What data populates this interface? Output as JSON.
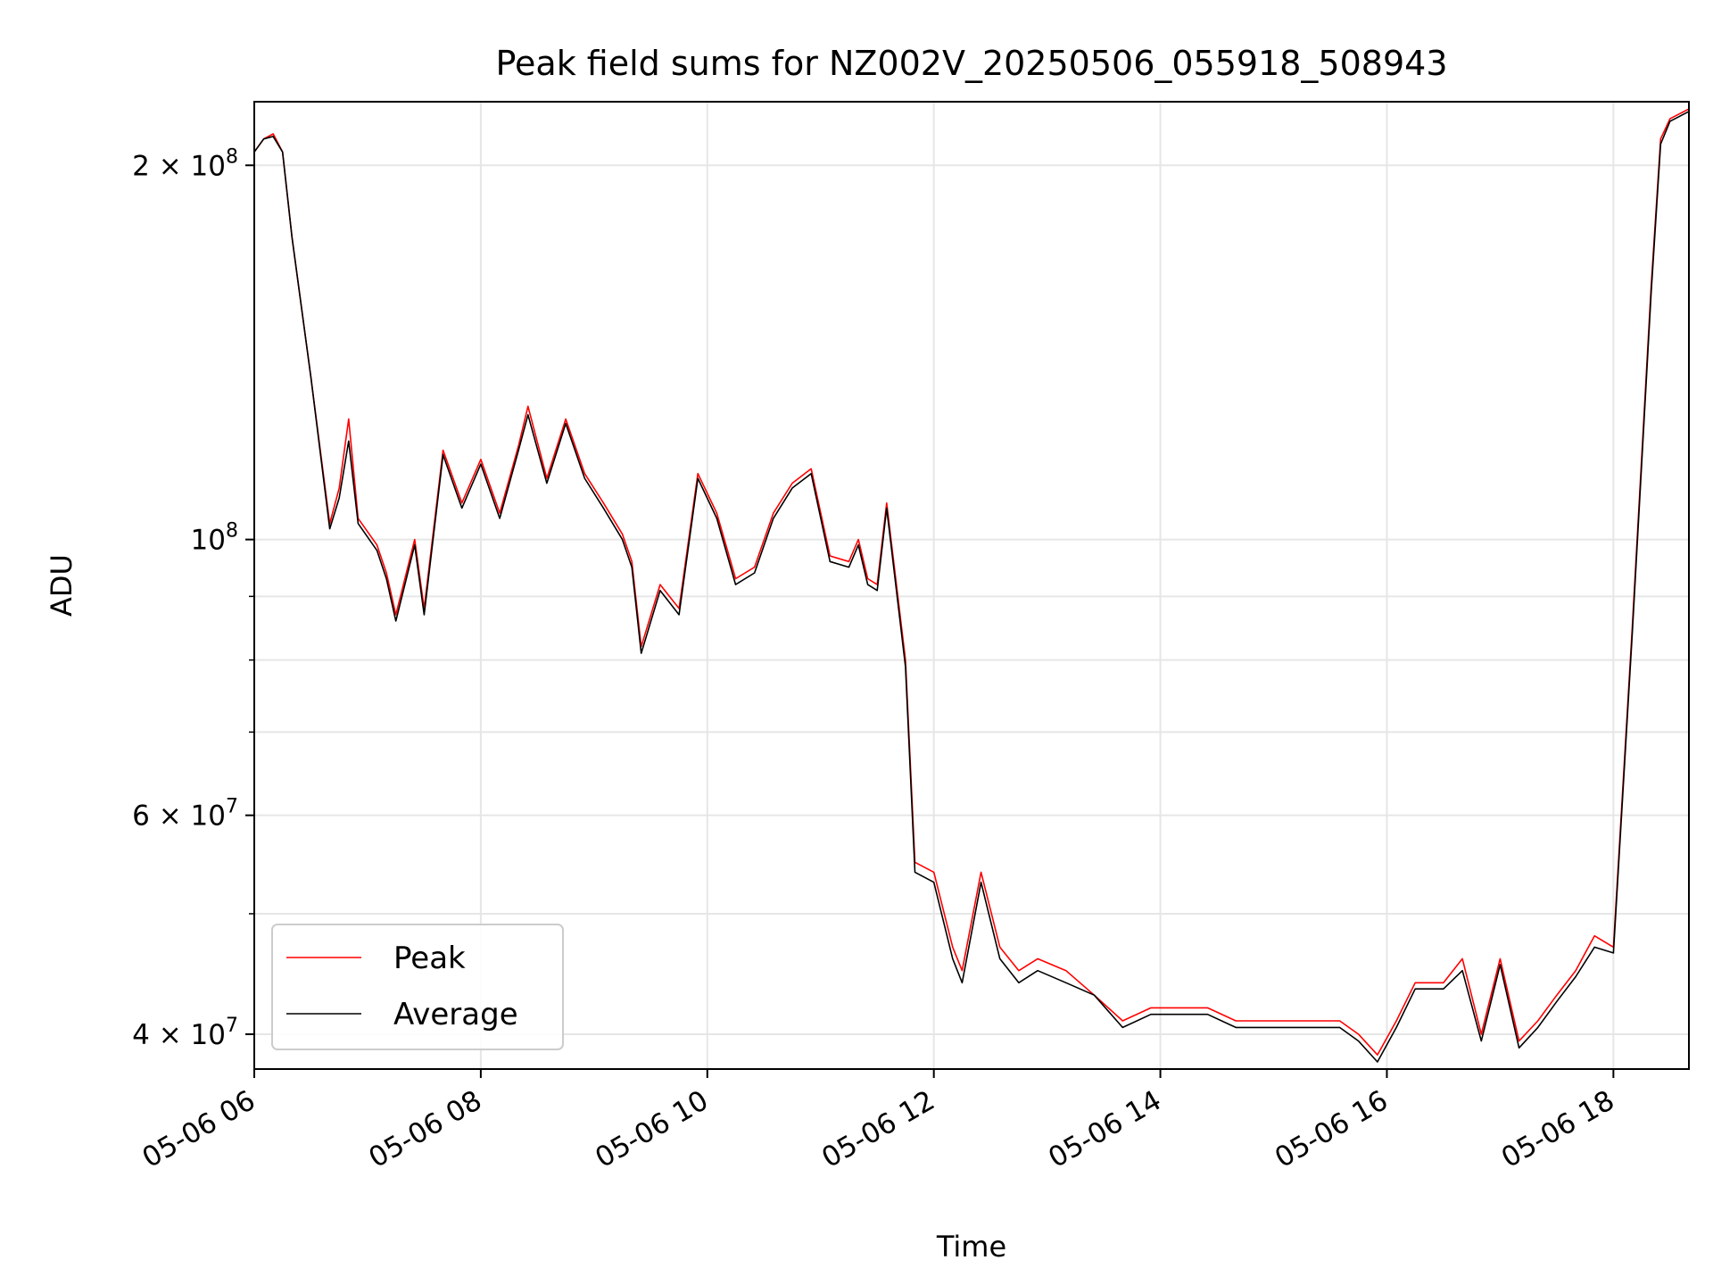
{
  "chart_data": {
    "type": "line",
    "title": "Peak field sums for NZ002V_20250506_055918_508943",
    "xlabel": "Time",
    "ylabel": "ADU",
    "y_scale": "log",
    "ylim": [
      37500000,
      225000000
    ],
    "xlim": [
      "2025-05-06T06:00",
      "2025-05-06T18:40"
    ],
    "grid": true,
    "legend_position": "lower-left",
    "x_tick_labels": [
      {
        "label": "05-06 06",
        "t": "2025-05-06T06:00"
      },
      {
        "label": "05-06 08",
        "t": "2025-05-06T08:00"
      },
      {
        "label": "05-06 10",
        "t": "2025-05-06T10:00"
      },
      {
        "label": "05-06 12",
        "t": "2025-05-06T12:00"
      },
      {
        "label": "05-06 14",
        "t": "2025-05-06T14:00"
      },
      {
        "label": "05-06 16",
        "t": "2025-05-06T16:00"
      },
      {
        "label": "05-06 18",
        "t": "2025-05-06T18:00"
      }
    ],
    "y_tick_labels": [
      {
        "base": "4",
        "exp": "7",
        "value": 40000000
      },
      {
        "base": "6",
        "exp": "7",
        "value": 60000000
      },
      {
        "base": "",
        "exp": "8",
        "value": 100000000
      },
      {
        "base": "2",
        "exp": "8",
        "value": 200000000
      }
    ],
    "y_minor_ticks": [
      50000000,
      70000000,
      80000000,
      90000000
    ],
    "series": [
      {
        "name": "Peak",
        "color": "#ff0000",
        "x": [
          "2025-05-06T06:00",
          "2025-05-06T06:05",
          "2025-05-06T06:10",
          "2025-05-06T06:15",
          "2025-05-06T06:20",
          "2025-05-06T06:30",
          "2025-05-06T06:40",
          "2025-05-06T06:45",
          "2025-05-06T06:50",
          "2025-05-06T06:55",
          "2025-05-06T07:05",
          "2025-05-06T07:10",
          "2025-05-06T07:15",
          "2025-05-06T07:25",
          "2025-05-06T07:30",
          "2025-05-06T07:40",
          "2025-05-06T07:50",
          "2025-05-06T08:00",
          "2025-05-06T08:10",
          "2025-05-06T08:20",
          "2025-05-06T08:25",
          "2025-05-06T08:35",
          "2025-05-06T08:45",
          "2025-05-06T08:55",
          "2025-05-06T09:05",
          "2025-05-06T09:15",
          "2025-05-06T09:20",
          "2025-05-06T09:25",
          "2025-05-06T09:35",
          "2025-05-06T09:45",
          "2025-05-06T09:55",
          "2025-05-06T10:05",
          "2025-05-06T10:15",
          "2025-05-06T10:25",
          "2025-05-06T10:35",
          "2025-05-06T10:45",
          "2025-05-06T10:55",
          "2025-05-06T11:05",
          "2025-05-06T11:15",
          "2025-05-06T11:20",
          "2025-05-06T11:25",
          "2025-05-06T11:30",
          "2025-05-06T11:35",
          "2025-05-06T11:45",
          "2025-05-06T11:50",
          "2025-05-06T12:00",
          "2025-05-06T12:10",
          "2025-05-06T12:15",
          "2025-05-06T12:25",
          "2025-05-06T12:35",
          "2025-05-06T12:45",
          "2025-05-06T12:55",
          "2025-05-06T13:10",
          "2025-05-06T13:25",
          "2025-05-06T13:40",
          "2025-05-06T13:55",
          "2025-05-06T14:10",
          "2025-05-06T14:25",
          "2025-05-06T14:40",
          "2025-05-06T14:55",
          "2025-05-06T15:10",
          "2025-05-06T15:25",
          "2025-05-06T15:35",
          "2025-05-06T15:45",
          "2025-05-06T15:55",
          "2025-05-06T16:05",
          "2025-05-06T16:15",
          "2025-05-06T16:30",
          "2025-05-06T16:40",
          "2025-05-06T16:50",
          "2025-05-06T17:00",
          "2025-05-06T17:10",
          "2025-05-06T17:20",
          "2025-05-06T17:30",
          "2025-05-06T17:40",
          "2025-05-06T17:50",
          "2025-05-06T18:00",
          "2025-05-06T18:10",
          "2025-05-06T18:20",
          "2025-05-06T18:25",
          "2025-05-06T18:30",
          "2025-05-06T18:35",
          "2025-05-06T18:40"
        ],
        "y": [
          205000000,
          210000000,
          212000000,
          205000000,
          175000000,
          135000000,
          103000000,
          110000000,
          125000000,
          104000000,
          99000000,
          94000000,
          87000000,
          100000000,
          88000000,
          118000000,
          107000000,
          116000000,
          105000000,
          119000000,
          128000000,
          112000000,
          125000000,
          113000000,
          107000000,
          101000000,
          96000000,
          82000000,
          92000000,
          88000000,
          113000000,
          105000000,
          93000000,
          95000000,
          105000000,
          111000000,
          114000000,
          97000000,
          96000000,
          100000000,
          93000000,
          92000000,
          107000000,
          80000000,
          55000000,
          54000000,
          47000000,
          45000000,
          54000000,
          47000000,
          45000000,
          46000000,
          45000000,
          43000000,
          41000000,
          42000000,
          42000000,
          42000000,
          41000000,
          41000000,
          41000000,
          41000000,
          41000000,
          40000000,
          38500000,
          41000000,
          44000000,
          44000000,
          46000000,
          40000000,
          46000000,
          39500000,
          41000000,
          43000000,
          45000000,
          48000000,
          47000000,
          85000000,
          160000000,
          210000000,
          218000000,
          220000000,
          222000000
        ]
      },
      {
        "name": "Average",
        "color": "#000000",
        "x": [
          "2025-05-06T06:00",
          "2025-05-06T06:05",
          "2025-05-06T06:10",
          "2025-05-06T06:15",
          "2025-05-06T06:20",
          "2025-05-06T06:30",
          "2025-05-06T06:40",
          "2025-05-06T06:45",
          "2025-05-06T06:50",
          "2025-05-06T06:55",
          "2025-05-06T07:05",
          "2025-05-06T07:10",
          "2025-05-06T07:15",
          "2025-05-06T07:25",
          "2025-05-06T07:30",
          "2025-05-06T07:40",
          "2025-05-06T07:50",
          "2025-05-06T08:00",
          "2025-05-06T08:10",
          "2025-05-06T08:20",
          "2025-05-06T08:25",
          "2025-05-06T08:35",
          "2025-05-06T08:45",
          "2025-05-06T08:55",
          "2025-05-06T09:05",
          "2025-05-06T09:15",
          "2025-05-06T09:20",
          "2025-05-06T09:25",
          "2025-05-06T09:35",
          "2025-05-06T09:45",
          "2025-05-06T09:55",
          "2025-05-06T10:05",
          "2025-05-06T10:15",
          "2025-05-06T10:25",
          "2025-05-06T10:35",
          "2025-05-06T10:45",
          "2025-05-06T10:55",
          "2025-05-06T11:05",
          "2025-05-06T11:15",
          "2025-05-06T11:20",
          "2025-05-06T11:25",
          "2025-05-06T11:30",
          "2025-05-06T11:35",
          "2025-05-06T11:45",
          "2025-05-06T11:50",
          "2025-05-06T12:00",
          "2025-05-06T12:10",
          "2025-05-06T12:15",
          "2025-05-06T12:25",
          "2025-05-06T12:35",
          "2025-05-06T12:45",
          "2025-05-06T12:55",
          "2025-05-06T13:10",
          "2025-05-06T13:25",
          "2025-05-06T13:40",
          "2025-05-06T13:55",
          "2025-05-06T14:10",
          "2025-05-06T14:25",
          "2025-05-06T14:40",
          "2025-05-06T14:55",
          "2025-05-06T15:10",
          "2025-05-06T15:25",
          "2025-05-06T15:35",
          "2025-05-06T15:45",
          "2025-05-06T15:55",
          "2025-05-06T16:05",
          "2025-05-06T16:15",
          "2025-05-06T16:30",
          "2025-05-06T16:40",
          "2025-05-06T16:50",
          "2025-05-06T17:00",
          "2025-05-06T17:10",
          "2025-05-06T17:20",
          "2025-05-06T17:30",
          "2025-05-06T17:40",
          "2025-05-06T17:50",
          "2025-05-06T18:00",
          "2025-05-06T18:10",
          "2025-05-06T18:20",
          "2025-05-06T18:25",
          "2025-05-06T18:30",
          "2025-05-06T18:35",
          "2025-05-06T18:40"
        ],
        "y": [
          205000000,
          210000000,
          211000000,
          205000000,
          175000000,
          135000000,
          102000000,
          108000000,
          120000000,
          103000000,
          98000000,
          93000000,
          86000000,
          99000000,
          87000000,
          117000000,
          106000000,
          115000000,
          104000000,
          118000000,
          126000000,
          111000000,
          124000000,
          112000000,
          106000000,
          100000000,
          95000000,
          81000000,
          91000000,
          87000000,
          112000000,
          104000000,
          92000000,
          94000000,
          104000000,
          110000000,
          113000000,
          96000000,
          95000000,
          99000000,
          92000000,
          91000000,
          106000000,
          79000000,
          54000000,
          53000000,
          46000000,
          44000000,
          53000000,
          46000000,
          44000000,
          45000000,
          44000000,
          43000000,
          40500000,
          41500000,
          41500000,
          41500000,
          40500000,
          40500000,
          40500000,
          40500000,
          40500000,
          39500000,
          38000000,
          40500000,
          43500000,
          43500000,
          45000000,
          39500000,
          45500000,
          39000000,
          40500000,
          42500000,
          44500000,
          47000000,
          46500000,
          84000000,
          158000000,
          208000000,
          217000000,
          219000000,
          221000000
        ]
      }
    ]
  }
}
